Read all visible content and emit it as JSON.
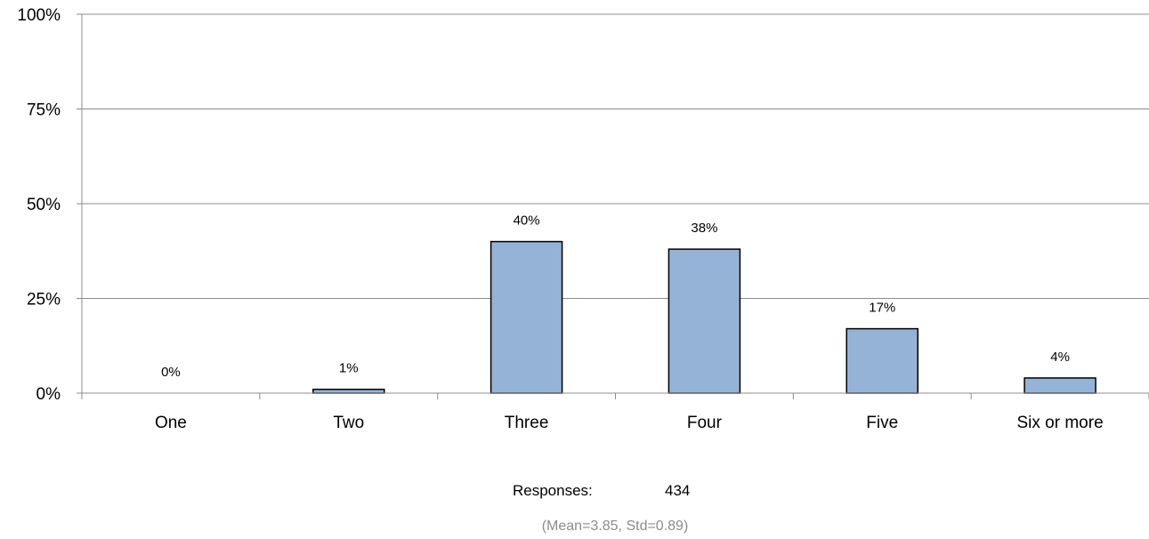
{
  "chart_data": {
    "type": "bar",
    "categories": [
      "One",
      "Two",
      "Three",
      "Four",
      "Five",
      "Six or more"
    ],
    "values": [
      0,
      1,
      40,
      38,
      17,
      4
    ],
    "data_labels": [
      "0%",
      "1%",
      "40%",
      "38%",
      "17%",
      "4%"
    ],
    "ylim": [
      0,
      100
    ],
    "yticks": [
      0,
      25,
      50,
      75,
      100
    ],
    "ytick_labels": [
      "0%",
      "25%",
      "50%",
      "75%",
      "100%"
    ],
    "grid": true,
    "bar_color": "#95b3d7",
    "bar_edge_color": "#000000",
    "title": "",
    "xlabel": "",
    "ylabel": ""
  },
  "footer": {
    "responses_label": "Responses:",
    "responses_value": "434",
    "stats": "(Mean=3.85, Std=0.89)"
  }
}
